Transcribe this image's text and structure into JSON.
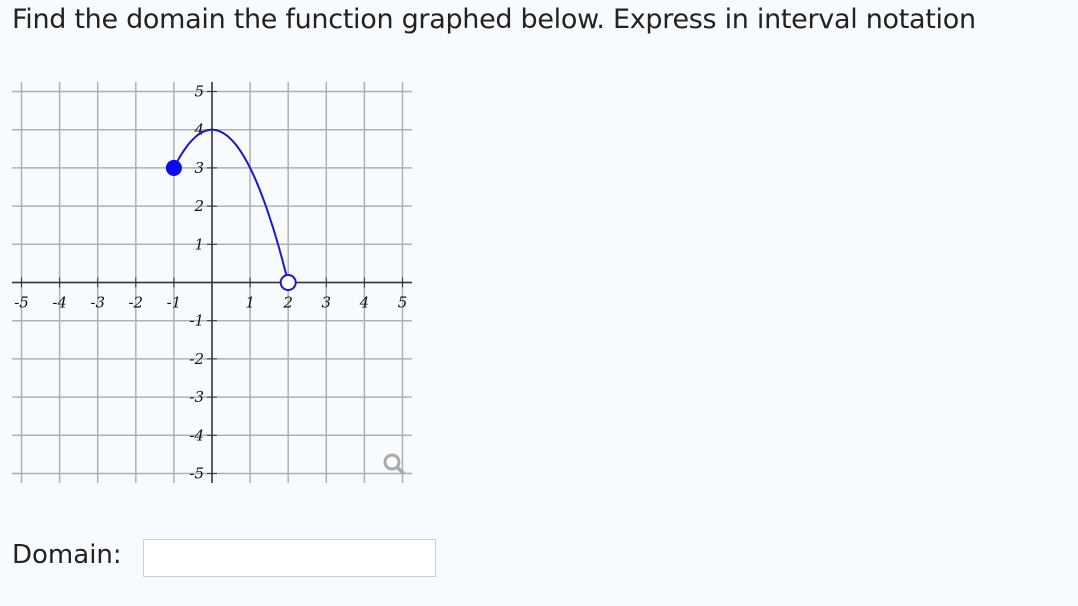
{
  "question": "Find the domain the function graphed below. Express in interval notation",
  "answer": {
    "label": "Domain:",
    "value": "",
    "placeholder": ""
  },
  "chart_data": {
    "type": "line",
    "title": "",
    "xlabel": "",
    "ylabel": "",
    "xlim": [
      -5.25,
      5.25
    ],
    "ylim": [
      -5.25,
      5.25
    ],
    "grid": true,
    "x_ticks": [
      -5,
      -4,
      -3,
      -2,
      -1,
      1,
      2,
      3,
      4,
      5
    ],
    "y_ticks": [
      5,
      4,
      3,
      2,
      1,
      -1,
      -2,
      -3,
      -4,
      -5
    ],
    "series": [
      {
        "function": "y = 4 - x^2",
        "x_range": [
          -1,
          2
        ],
        "color": "#1a1acc",
        "points": [
          [
            -1,
            3
          ],
          [
            -0.5,
            3.75
          ],
          [
            0,
            4
          ],
          [
            0.5,
            3.75
          ],
          [
            1,
            3
          ],
          [
            1.5,
            1.75
          ],
          [
            2,
            0
          ]
        ]
      }
    ],
    "endpoints": [
      {
        "x": -1,
        "y": 3,
        "style": "closed"
      },
      {
        "x": 2,
        "y": 0,
        "style": "open"
      }
    ]
  },
  "icons": {
    "zoom": "magnifier-icon"
  },
  "colors": {
    "curve": "#1a1acc",
    "closed_point": "#0a0af0",
    "grid": "#b0b0b0",
    "axis": "#333333"
  }
}
